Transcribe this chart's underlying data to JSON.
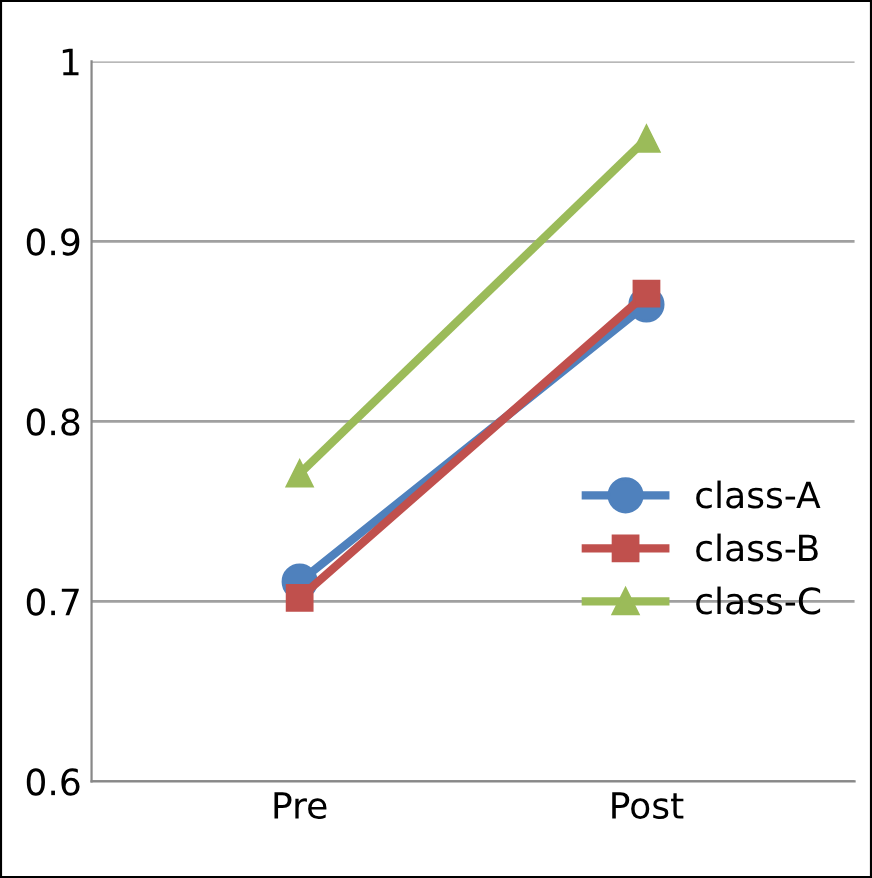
{
  "chart_data": {
    "type": "line",
    "categories": [
      "Pre",
      "Post"
    ],
    "series": [
      {
        "name": "class-A",
        "color": "#4f81bd",
        "marker": "circle",
        "values": [
          0.711,
          0.865
        ]
      },
      {
        "name": "class-B",
        "color": "#c0504d",
        "marker": "square",
        "values": [
          0.702,
          0.871
        ]
      },
      {
        "name": "class-C",
        "color": "#9bbb59",
        "marker": "triangle",
        "values": [
          0.771,
          0.957
        ]
      }
    ],
    "ylim": [
      0.6,
      1
    ],
    "yticks": [
      0.6,
      0.7,
      0.8,
      0.9,
      1
    ],
    "grid": "y",
    "legend": "right",
    "line_style": "solid"
  }
}
